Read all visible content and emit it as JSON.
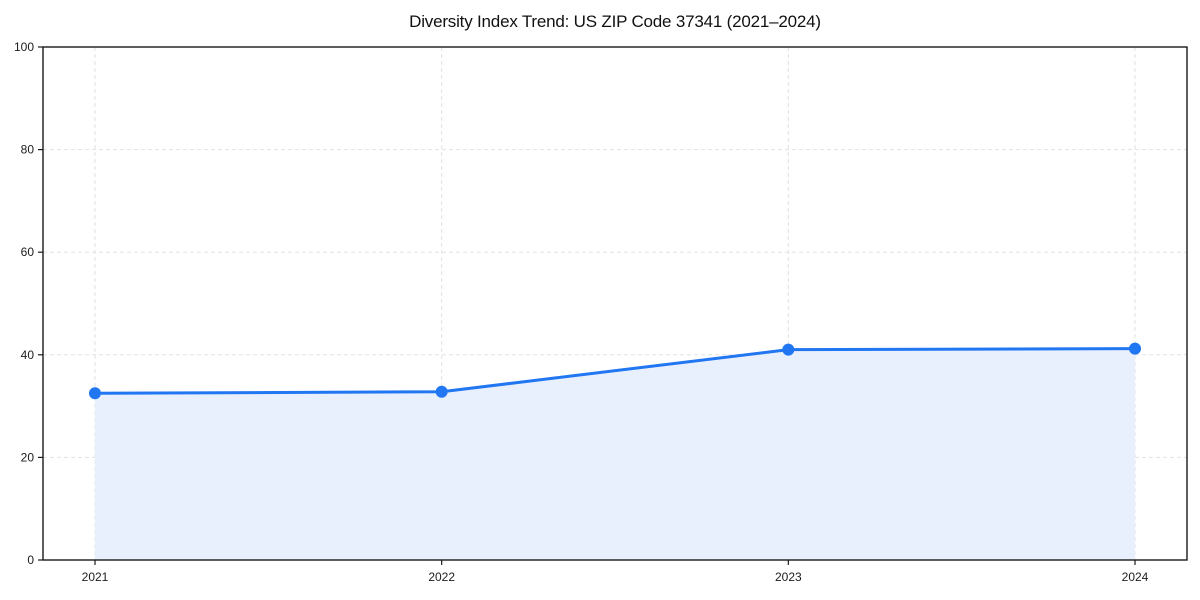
{
  "chart_data": {
    "type": "area",
    "title": "Diversity Index Trend: US ZIP Code 37341 (2021–2024)",
    "categories": [
      "2021",
      "2022",
      "2023",
      "2024"
    ],
    "values": [
      32.5,
      32.8,
      41.0,
      41.2
    ],
    "series_name": "Diversity Index",
    "xlabel": "",
    "ylabel": "",
    "ylim": [
      0,
      100
    ],
    "y_ticks": [
      0,
      20,
      40,
      60,
      80,
      100
    ],
    "grid": "dashed-both-axes",
    "legend": "none",
    "colors": {
      "line": "#2176f2",
      "marker": "#2176f2",
      "fill": "#e9f0fd",
      "grid": "#e2e2e2",
      "axis": "#1a1a1a",
      "text": "#1c1c1c",
      "background": "#ffffff"
    }
  }
}
